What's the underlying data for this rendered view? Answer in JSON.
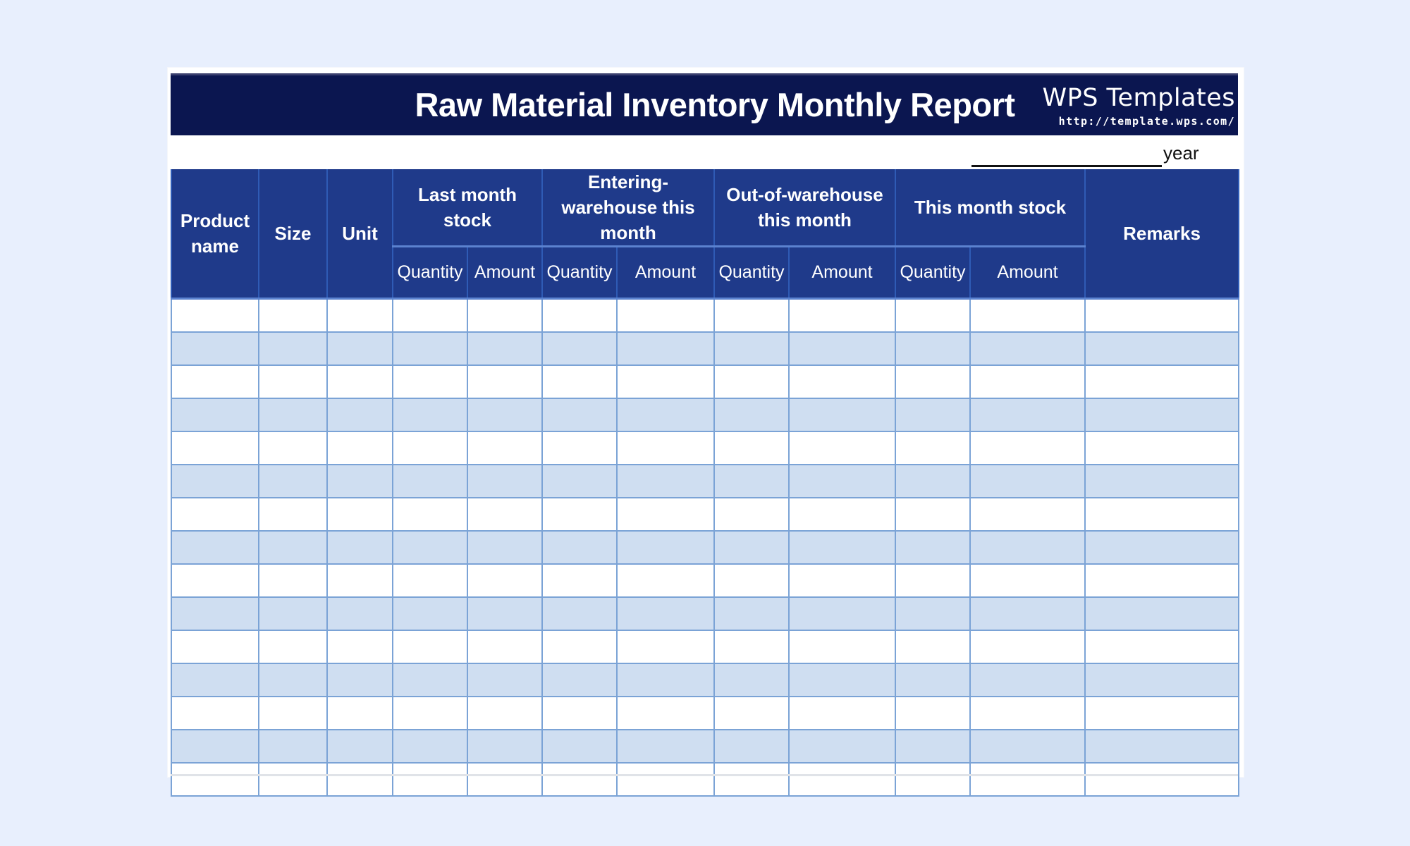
{
  "report": {
    "title": "Raw Material Inventory Monthly Report",
    "year_label": "year"
  },
  "brand": {
    "name": "WPS Templates",
    "url": "http://template.wps.com/"
  },
  "table": {
    "headers": {
      "product_name": "Product name",
      "size": "Size",
      "unit": "Unit",
      "last_month_stock": "Last month stock",
      "entering_warehouse": "Entering-warehouse this month",
      "out_of_warehouse": "Out-of-warehouse this month",
      "this_month_stock": "This month stock",
      "remarks": "Remarks"
    },
    "sub_headers": {
      "quantity": "Quantity",
      "amount": "Amount"
    },
    "rows": []
  },
  "colors": {
    "title_bar": "#0b1650",
    "header_bg": "#1f3a8a",
    "row_stripe": "#cfdef1",
    "grid_line": "#7ba3d6",
    "page_bg": "#e8effd"
  }
}
